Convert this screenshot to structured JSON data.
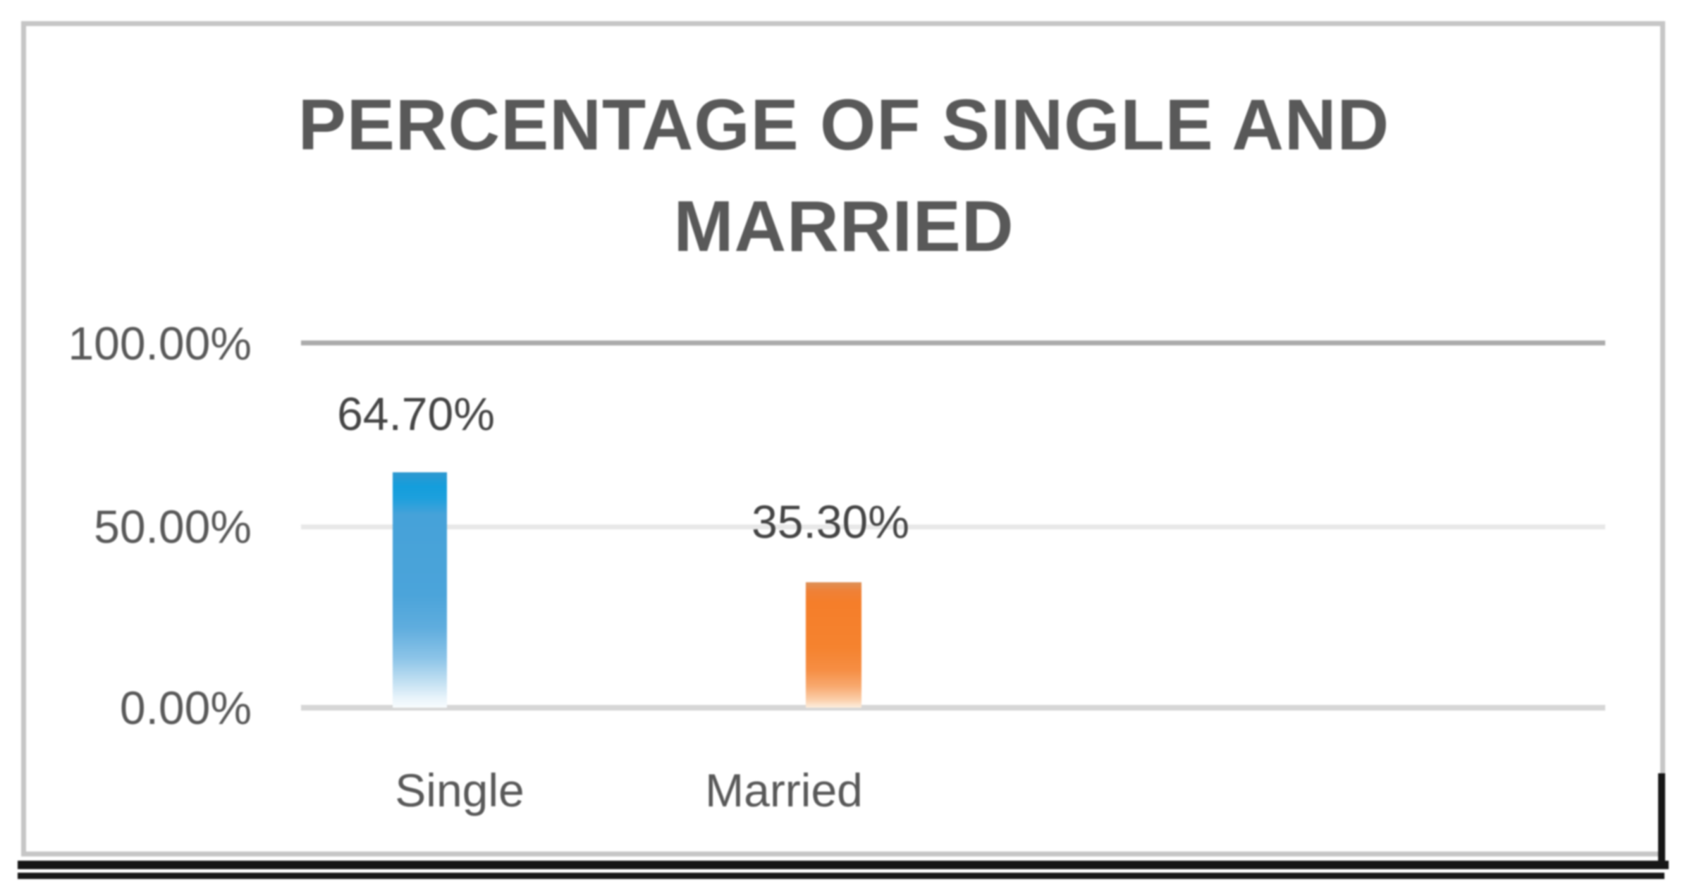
{
  "chart_data": {
    "type": "bar",
    "title": "PERCENTAGE OF SINGLE AND MARRIED",
    "title_lines": [
      "PERCENTAGE OF SINGLE AND",
      "MARRIED"
    ],
    "categories": [
      "Single",
      "Married"
    ],
    "series": [
      {
        "name": "Single",
        "color": "#2E9BD5",
        "values": [
          64.7,
          null
        ],
        "data_label": "64.70%"
      },
      {
        "name": "Married",
        "color": "#ED7D31",
        "values": [
          null,
          35.3
        ],
        "data_label": "35.30%"
      }
    ],
    "y_axis": {
      "min": 0,
      "max": 100,
      "major_unit": 50,
      "tick_labels": [
        "100.00%",
        "50.00%",
        "0.00%"
      ],
      "format": "0.00%"
    },
    "x_axis": {
      "labels": [
        "Single",
        "Married"
      ]
    },
    "legend_position": "none",
    "gridlines": "horizontal"
  },
  "colors": {
    "title_text": "#595959",
    "axis_text": "#595959",
    "data_label_text": "#454545",
    "bar_single": "#2E9BD5",
    "bar_married": "#ED7D31",
    "gridline_top": "#ABABAB",
    "gridline_mid": "#E8E8E8",
    "axis_line": "#D6D6D6",
    "chart_border": "#C6C6C6",
    "bottom_rule": "#171717",
    "background": "#FFFFFF"
  }
}
